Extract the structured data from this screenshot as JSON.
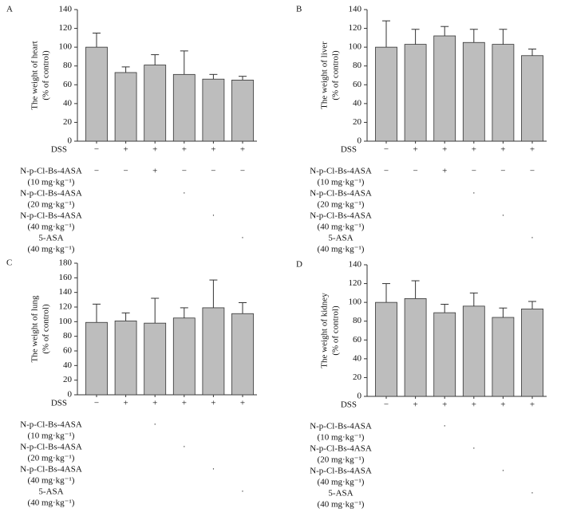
{
  "chart_data": [
    {
      "type": "bar",
      "panel": "A",
      "ylabel": [
        "The weight of heart",
        "(% of control)"
      ],
      "ylim": [
        0,
        140
      ],
      "yticks": [
        0,
        20,
        40,
        60,
        80,
        100,
        120,
        140
      ],
      "color": "#bdbdbd",
      "values": [
        100,
        73,
        81,
        71,
        66,
        65
      ],
      "errors": [
        15,
        6,
        11,
        25,
        5,
        4
      ],
      "treatments": [
        {
          "label": [
            "DSS"
          ],
          "marks": [
            "−",
            "+",
            "+",
            "+",
            "+",
            "+"
          ]
        },
        {
          "label": [
            "N-p-Cl-Bs-4ASA",
            "(10 mg·kg⁻¹)"
          ],
          "marks": [
            "−",
            "−",
            "+",
            "−",
            "−",
            "−"
          ]
        },
        {
          "label": [
            "N-p-Cl-Bs-4ASA",
            "(20 mg·kg⁻¹)"
          ],
          "marks": [
            null,
            null,
            null,
            "·",
            null,
            null
          ]
        },
        {
          "label": [
            "N-p-Cl-Bs-4ASA",
            "(40 mg·kg⁻¹)"
          ],
          "marks": [
            null,
            null,
            null,
            null,
            "·",
            null
          ]
        },
        {
          "label": [
            "5-ASA",
            "(40 mg·kg⁻¹)"
          ],
          "marks": [
            null,
            null,
            null,
            null,
            null,
            "·"
          ]
        }
      ]
    },
    {
      "type": "bar",
      "panel": "B",
      "ylabel": [
        "The weight of liver",
        "(% of control)"
      ],
      "ylim": [
        0,
        140
      ],
      "yticks": [
        0,
        20,
        40,
        60,
        80,
        100,
        120,
        140
      ],
      "color": "#bdbdbd",
      "values": [
        100,
        103,
        112,
        105,
        103,
        91
      ],
      "errors": [
        28,
        16,
        10,
        14,
        16,
        7
      ],
      "treatments": [
        {
          "label": [
            "DSS"
          ],
          "marks": [
            "−",
            "+",
            "+",
            "+",
            "+",
            "+"
          ]
        },
        {
          "label": [
            "N-p-Cl-Bs-4ASA",
            "(10 mg·kg⁻¹)"
          ],
          "marks": [
            "−",
            "−",
            "+",
            "−",
            "−",
            "−"
          ]
        },
        {
          "label": [
            "N-p-Cl-Bs-4ASA",
            "(20 mg·kg⁻¹)"
          ],
          "marks": [
            null,
            null,
            null,
            "·",
            null,
            null
          ]
        },
        {
          "label": [
            "N-p-Cl-Bs-4ASA",
            "(40 mg·kg⁻¹)"
          ],
          "marks": [
            null,
            null,
            null,
            null,
            "·",
            null
          ]
        },
        {
          "label": [
            "5-ASA",
            "(40 mg·kg⁻¹)"
          ],
          "marks": [
            null,
            null,
            null,
            null,
            null,
            "·"
          ]
        }
      ]
    },
    {
      "type": "bar",
      "panel": "C",
      "ylabel": [
        "The weight of lung",
        "(% of control)"
      ],
      "ylim": [
        0,
        180
      ],
      "yticks": [
        0,
        20,
        40,
        60,
        80,
        100,
        120,
        140,
        160,
        180
      ],
      "color": "#bdbdbd",
      "values": [
        99,
        101,
        98,
        105,
        119,
        111
      ],
      "errors": [
        25,
        11,
        34,
        14,
        38,
        15
      ],
      "treatments": [
        {
          "label": [
            "DSS"
          ],
          "marks": [
            "−",
            "+",
            "+",
            "+",
            "+",
            "+"
          ]
        },
        {
          "label": [
            "N-p-Cl-Bs-4ASA",
            "(10 mg·kg⁻¹)"
          ],
          "marks": [
            null,
            null,
            "·",
            null,
            null,
            null
          ]
        },
        {
          "label": [
            "N-p-Cl-Bs-4ASA",
            "(20 mg·kg⁻¹)"
          ],
          "marks": [
            null,
            null,
            null,
            "·",
            null,
            null
          ]
        },
        {
          "label": [
            "N-p-Cl-Bs-4ASA",
            "(40 mg·kg⁻¹)"
          ],
          "marks": [
            null,
            null,
            null,
            null,
            "·",
            null
          ]
        },
        {
          "label": [
            "5-ASA",
            "(40 mg·kg⁻¹)"
          ],
          "marks": [
            null,
            null,
            null,
            null,
            null,
            "·"
          ]
        }
      ]
    },
    {
      "type": "bar",
      "panel": "D",
      "ylabel": [
        "The weight of kidney",
        "(% of control)"
      ],
      "ylim": [
        0,
        140
      ],
      "yticks": [
        0,
        20,
        40,
        60,
        80,
        100,
        120,
        140
      ],
      "color": "#bdbdbd",
      "values": [
        100,
        104,
        89,
        96,
        84,
        93
      ],
      "errors": [
        20,
        19,
        9,
        14,
        10,
        8
      ],
      "treatments": [
        {
          "label": [
            "DSS"
          ],
          "marks": [
            "−",
            "+",
            "+",
            "+",
            "+",
            "+"
          ]
        },
        {
          "label": [
            "N-p-Cl-Bs-4ASA",
            "(10 mg·kg⁻¹)"
          ],
          "marks": [
            null,
            null,
            "·",
            null,
            null,
            null
          ]
        },
        {
          "label": [
            "N-p-Cl-Bs-4ASA",
            "(20 mg·kg⁻¹)"
          ],
          "marks": [
            null,
            null,
            null,
            "·",
            null,
            null
          ]
        },
        {
          "label": [
            "N-p-Cl-Bs-4ASA",
            "(40 mg·kg⁻¹)"
          ],
          "marks": [
            null,
            null,
            null,
            null,
            "·",
            null
          ]
        },
        {
          "label": [
            "5-ASA",
            "(40 mg·kg⁻¹)"
          ],
          "marks": [
            null,
            null,
            null,
            null,
            null,
            "·"
          ]
        }
      ]
    }
  ]
}
